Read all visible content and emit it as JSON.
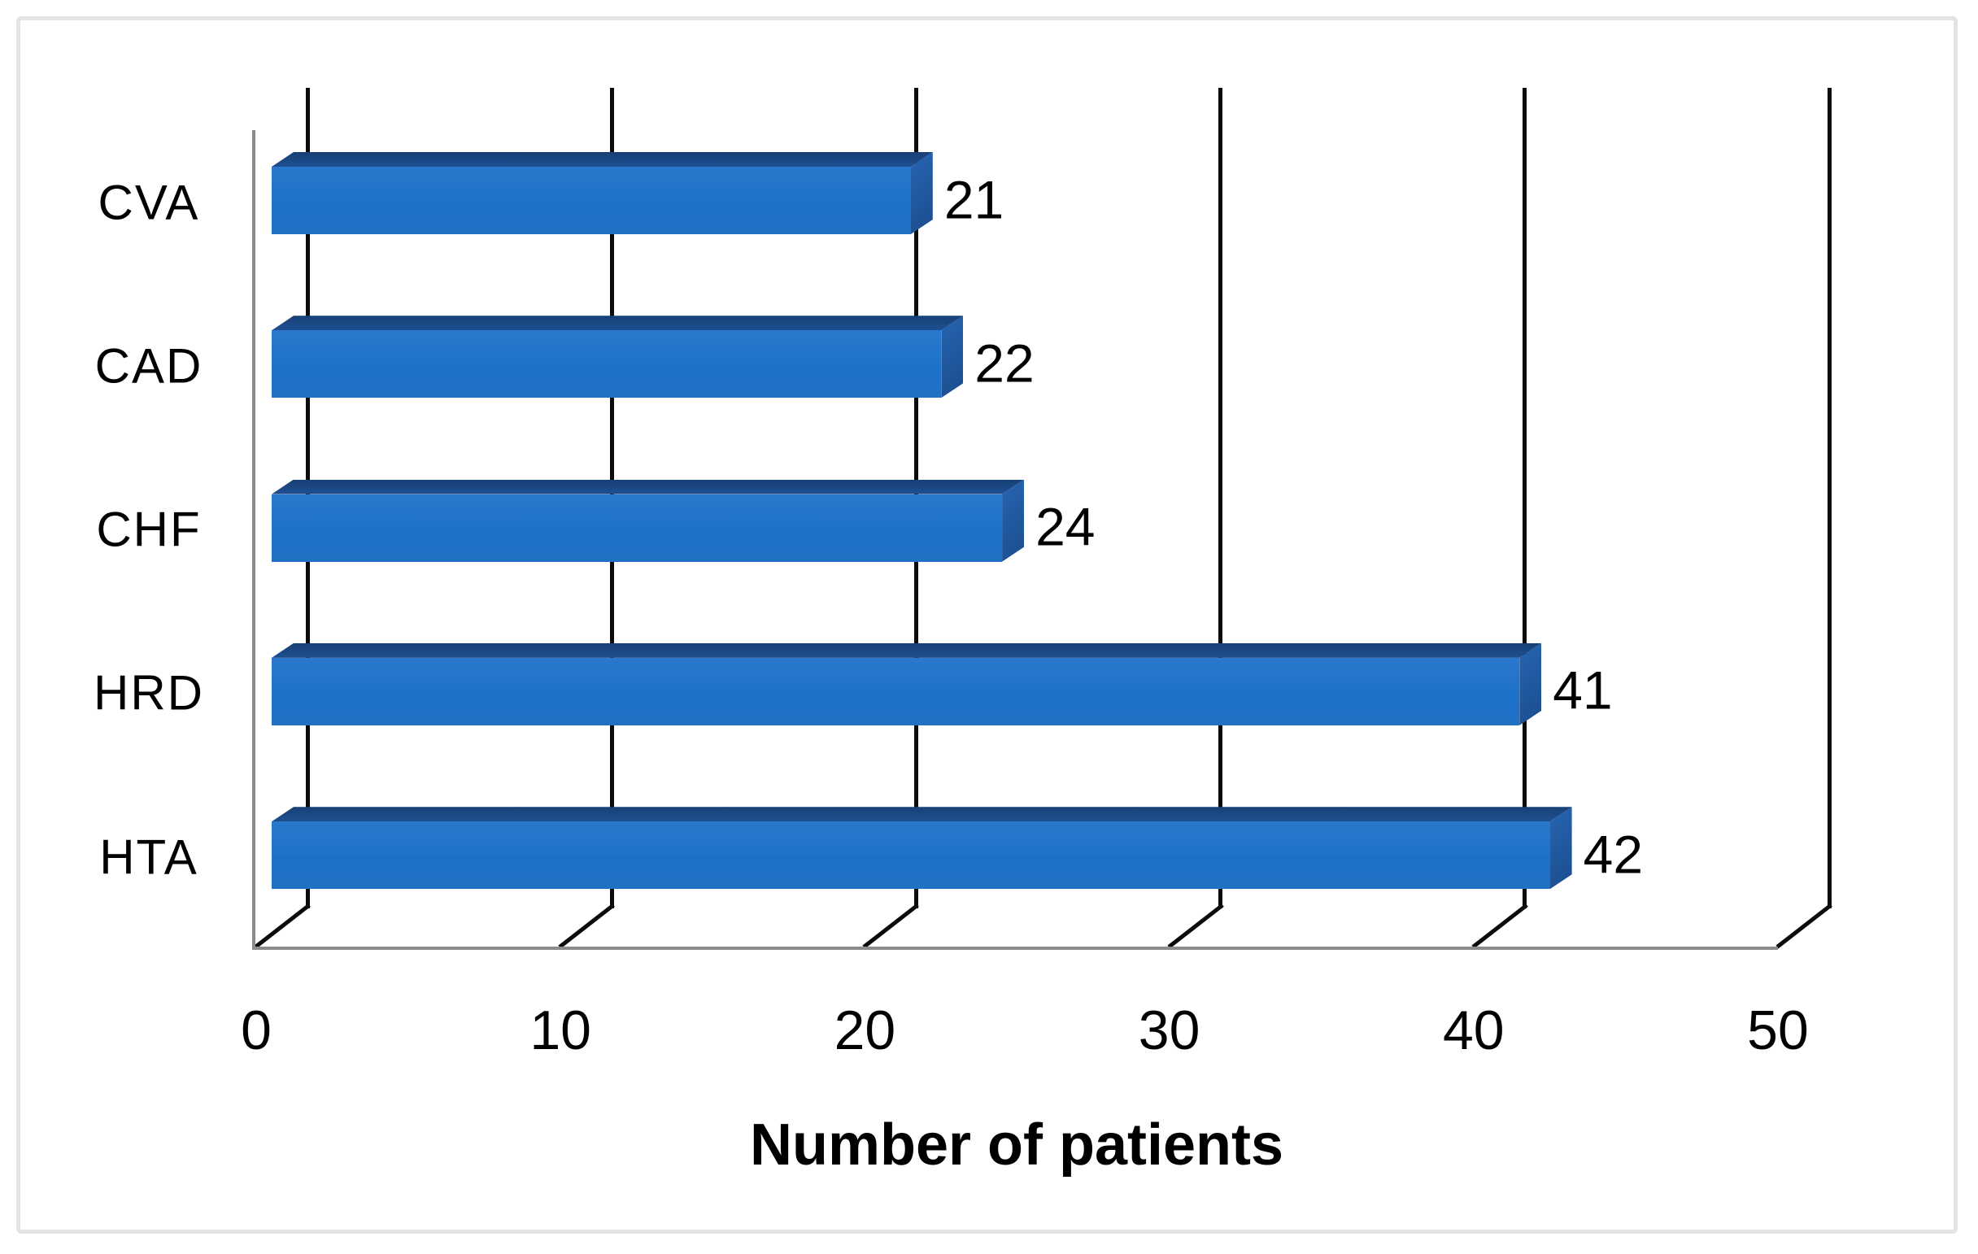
{
  "chart_data": {
    "type": "bar",
    "orientation": "horizontal",
    "style": "3d",
    "categories": [
      "CVA",
      "CAD",
      "CHF",
      "HRD",
      "HTA"
    ],
    "values": [
      21,
      22,
      24,
      41,
      42
    ],
    "data_labels": [
      "21",
      "22",
      "24",
      "41",
      "42"
    ],
    "title": "",
    "xlabel": "Number of patients",
    "ylabel": "",
    "x_ticks": [
      0,
      10,
      20,
      30,
      40,
      50
    ],
    "x_tick_labels": [
      "0",
      "10",
      "20",
      "30",
      "40",
      "50"
    ],
    "xlim": [
      0,
      50
    ],
    "grid": "vertical-gridlines-on-back-wall",
    "legend": "none",
    "colors": {
      "bar_front": "#2070C9",
      "bar_top_dark": "#173F74",
      "bar_top_light": "#1D4D8C",
      "bar_cap_light": "#2765B2",
      "bar_cap_dark": "#1C4F90",
      "gridline": "#0B0B0B",
      "axis_line": "#8B8B8B",
      "figure_border": "#E3E3E3",
      "text": "#000000",
      "background": "#FFFFFF"
    }
  }
}
